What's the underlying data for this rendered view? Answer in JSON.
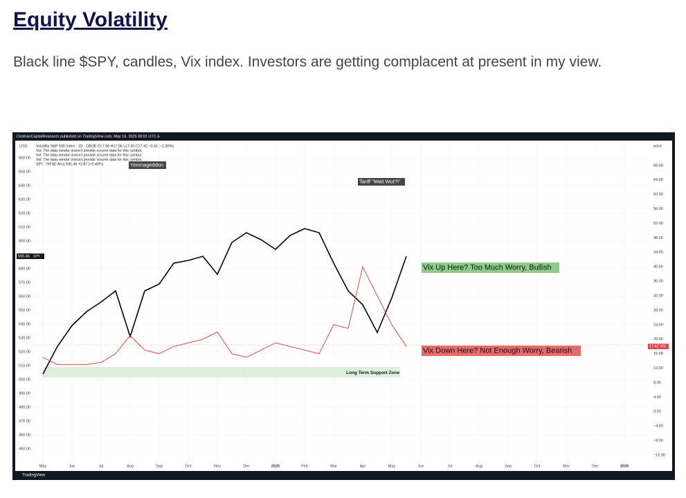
{
  "header": {
    "title": "Equity Volatility"
  },
  "body": {
    "text": "Black line $SPY, candles, Vix index. Investors are getting complacent at present in my view."
  },
  "chart_data": {
    "type": "line",
    "attribution": "CestrianCapitalResearch published on TradingView.com, May 16, 2025 08:01 UTC-5",
    "legend_lines": [
      "Volatility S&P 500 Index · 1D · CBOE  O17.96 H17.96 L17.30 C17.42 −0.41 (−2.30%)",
      "Vol: The data vendor doesn't provide volume data for this symbol.",
      "Vol: The data vendor doesn't provide volume data for this symbol.",
      "Vol: The data vendor doesn't provide volume data for this symbol.",
      "SPY · NYSE Arca  590.46  +2.87 (+0.49%)"
    ],
    "y_unit": "USD",
    "y2_unit": "point",
    "brand": "TradingView",
    "categories": [
      "May",
      null,
      "Jun",
      null,
      "Jul",
      null,
      "Aug",
      null,
      "Sep",
      null,
      "Oct",
      null,
      "Nov",
      null,
      "Dec",
      null,
      "2025",
      null,
      "Feb",
      null,
      "Mar",
      null,
      "Apr",
      null,
      "May",
      null,
      "Jun",
      null,
      "Jul",
      null,
      "Aug",
      null,
      "Sep",
      null,
      "Oct",
      null,
      "Nov",
      null,
      "Dec",
      null,
      "2026"
    ],
    "series": [
      {
        "name": "SPY",
        "color": "#000000",
        "last_label": "590.46",
        "values": [
          504,
          524,
          539,
          549,
          556,
          564,
          531,
          564,
          569,
          584,
          586,
          589,
          576,
          599,
          606,
          601,
          594,
          604,
          609,
          606,
          584,
          564,
          554,
          534,
          559,
          589,
          null,
          null,
          null,
          null,
          null,
          null,
          null,
          null,
          null,
          null,
          null,
          null,
          null,
          null,
          null
        ]
      },
      {
        "name": "VIX",
        "color": "#e0464a",
        "axis": "y2",
        "last_label": "17.42",
        "values": [
          15,
          13,
          13,
          13,
          13.6,
          16,
          21,
          17,
          16,
          18,
          19,
          20,
          22,
          16,
          15,
          17,
          19,
          18,
          17,
          16,
          24,
          23,
          40,
          32,
          24,
          18,
          null,
          null,
          null,
          null,
          null,
          null,
          null,
          null,
          null,
          null,
          null,
          null,
          null,
          null,
          null
        ]
      }
    ],
    "ylim": [
      440,
      670
    ],
    "yticks": [
      {
        "value": 450,
        "label": "450.00"
      },
      {
        "value": 460,
        "label": "460.00"
      },
      {
        "value": 470,
        "label": "470.00"
      },
      {
        "value": 480,
        "label": "480.00"
      },
      {
        "value": 490,
        "label": "490.00"
      },
      {
        "value": 500,
        "label": "500.00"
      },
      {
        "value": 510,
        "label": "510.00"
      },
      {
        "value": 520,
        "label": "520.00"
      },
      {
        "value": 530,
        "label": "530.00"
      },
      {
        "value": 540,
        "label": "540.00"
      },
      {
        "value": 550,
        "label": "550.00"
      },
      {
        "value": 560,
        "label": "560.00"
      },
      {
        "value": 570,
        "label": "570.00"
      },
      {
        "value": 580,
        "label": "580.00"
      },
      {
        "value": 590,
        "label": "590.00"
      },
      {
        "value": 600,
        "label": "600.00"
      },
      {
        "value": 610,
        "label": "610.00"
      },
      {
        "value": 620,
        "label": "620.00"
      },
      {
        "value": 630,
        "label": "630.00"
      },
      {
        "value": 640,
        "label": "640.00"
      },
      {
        "value": 650,
        "label": "650.00"
      },
      {
        "value": 660,
        "label": "660.00"
      }
    ],
    "y2lim": [
      -14.1,
      73.9
    ],
    "y2ticks": [
      {
        "value": -12,
        "label": "−12.00"
      },
      {
        "value": -8,
        "label": "−8.00"
      },
      {
        "value": -4,
        "label": "−4.00"
      },
      {
        "value": 0,
        "label": "0.00"
      },
      {
        "value": 4,
        "label": "4.00"
      },
      {
        "value": 8,
        "label": "8.00"
      },
      {
        "value": 12,
        "label": "12.00"
      },
      {
        "value": 16,
        "label": "16.00"
      },
      {
        "value": 20,
        "label": "20.00"
      },
      {
        "value": 24,
        "label": "24.00"
      },
      {
        "value": 28,
        "label": "28.00"
      },
      {
        "value": 32,
        "label": "32.00"
      },
      {
        "value": 36,
        "label": "36.00"
      },
      {
        "value": 40,
        "label": "40.00"
      },
      {
        "value": 44,
        "label": "44.00"
      },
      {
        "value": 48,
        "label": "48.00"
      },
      {
        "value": 52,
        "label": "52.00"
      },
      {
        "value": 56,
        "label": "56.00"
      },
      {
        "value": 60,
        "label": "60.00"
      },
      {
        "value": 64,
        "label": "64.00"
      },
      {
        "value": 68,
        "label": "68.00"
      }
    ],
    "grid": true,
    "annotations": [
      "Yenmageddon",
      "Tariff “Wait Wut?!”",
      "Vix Up Here? Too Much Worry, Bullish",
      "Vix Down Here? Not Enough Worry, Bearish",
      "Long Term Support Zone"
    ]
  }
}
